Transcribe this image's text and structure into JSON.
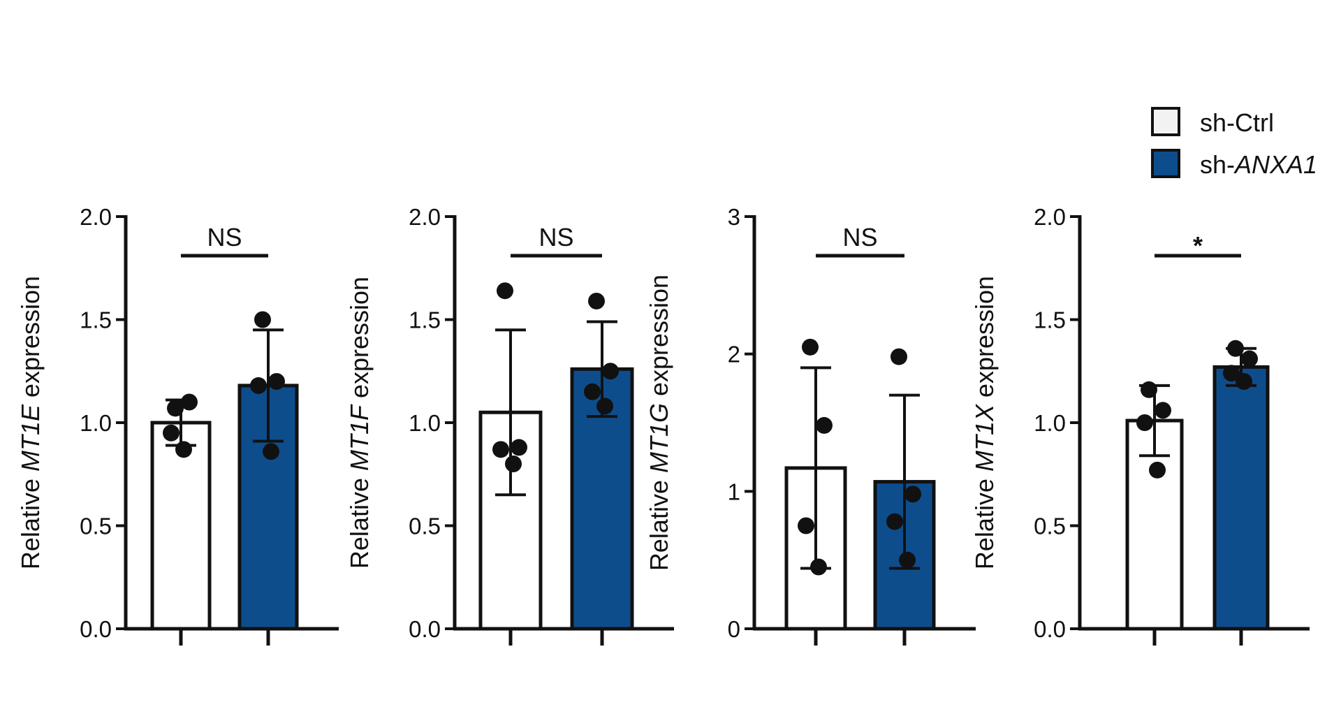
{
  "legend": {
    "items": [
      {
        "label": "sh-Ctrl",
        "color": "#f2f2f2"
      },
      {
        "label_prefix": "sh-",
        "label_italic": "ANXA1",
        "color": "#0e4d8c"
      }
    ]
  },
  "colors": {
    "ctrl": "#ffffff",
    "treat": "#0e4d8c",
    "axis": "#111111",
    "point": "#111111"
  },
  "chart_data": [
    {
      "type": "bar",
      "gene": "MT1E",
      "ylabel_prefix": "Relative ",
      "ylabel_gene": "MT1E",
      "ylabel_suffix": " expression",
      "ylim": [
        0,
        2
      ],
      "yticks": [
        "0.0",
        "0.5",
        "1.0",
        "1.5",
        "2.0"
      ],
      "ytick_values": [
        0,
        0.5,
        1.0,
        1.5,
        2.0
      ],
      "significance": "NS",
      "series": [
        {
          "name": "sh-Ctrl",
          "mean": 1.0,
          "sd": 0.11,
          "points": [
            1.07,
            1.1,
            0.95,
            0.87
          ]
        },
        {
          "name": "sh-ANXA1",
          "mean": 1.18,
          "sd": 0.27,
          "points": [
            1.5,
            1.2,
            1.18,
            0.86
          ]
        }
      ]
    },
    {
      "type": "bar",
      "gene": "MT1F",
      "ylabel_prefix": "Relative ",
      "ylabel_gene": "MT1F",
      "ylabel_suffix": " expression",
      "ylim": [
        0,
        2
      ],
      "yticks": [
        "0.0",
        "0.5",
        "1.0",
        "1.5",
        "2.0"
      ],
      "ytick_values": [
        0,
        0.5,
        1.0,
        1.5,
        2.0
      ],
      "significance": "NS",
      "series": [
        {
          "name": "sh-Ctrl",
          "mean": 1.05,
          "sd": 0.4,
          "points": [
            1.64,
            0.88,
            0.87,
            0.8
          ]
        },
        {
          "name": "sh-ANXA1",
          "mean": 1.26,
          "sd": 0.23,
          "points": [
            1.59,
            1.25,
            1.15,
            1.08
          ]
        }
      ]
    },
    {
      "type": "bar",
      "gene": "MT1G",
      "ylabel_prefix": "Relative ",
      "ylabel_gene": "MT1G",
      "ylabel_suffix": " expression",
      "ylim": [
        0,
        3
      ],
      "yticks": [
        "0",
        "1",
        "2",
        "3"
      ],
      "ytick_values": [
        0,
        1,
        2,
        3
      ],
      "significance": "NS",
      "series": [
        {
          "name": "sh-Ctrl",
          "mean": 1.17,
          "sd": 0.73,
          "points": [
            2.05,
            1.48,
            0.75,
            0.45
          ]
        },
        {
          "name": "sh-ANXA1",
          "mean": 1.07,
          "sd": 0.63,
          "points": [
            1.98,
            0.98,
            0.78,
            0.5
          ]
        }
      ]
    },
    {
      "type": "bar",
      "gene": "MT1X",
      "ylabel_prefix": "Relative ",
      "ylabel_gene": "MT1X",
      "ylabel_suffix": " expression",
      "ylim": [
        0,
        2
      ],
      "yticks": [
        "0.0",
        "0.5",
        "1.0",
        "1.5",
        "2.0"
      ],
      "ytick_values": [
        0,
        0.5,
        1.0,
        1.5,
        2.0
      ],
      "significance": "*",
      "series": [
        {
          "name": "sh-Ctrl",
          "mean": 1.01,
          "sd": 0.17,
          "points": [
            1.16,
            1.06,
            1.0,
            0.77
          ]
        },
        {
          "name": "sh-ANXA1",
          "mean": 1.27,
          "sd": 0.09,
          "points": [
            1.36,
            1.31,
            1.24,
            1.2
          ]
        }
      ]
    }
  ]
}
